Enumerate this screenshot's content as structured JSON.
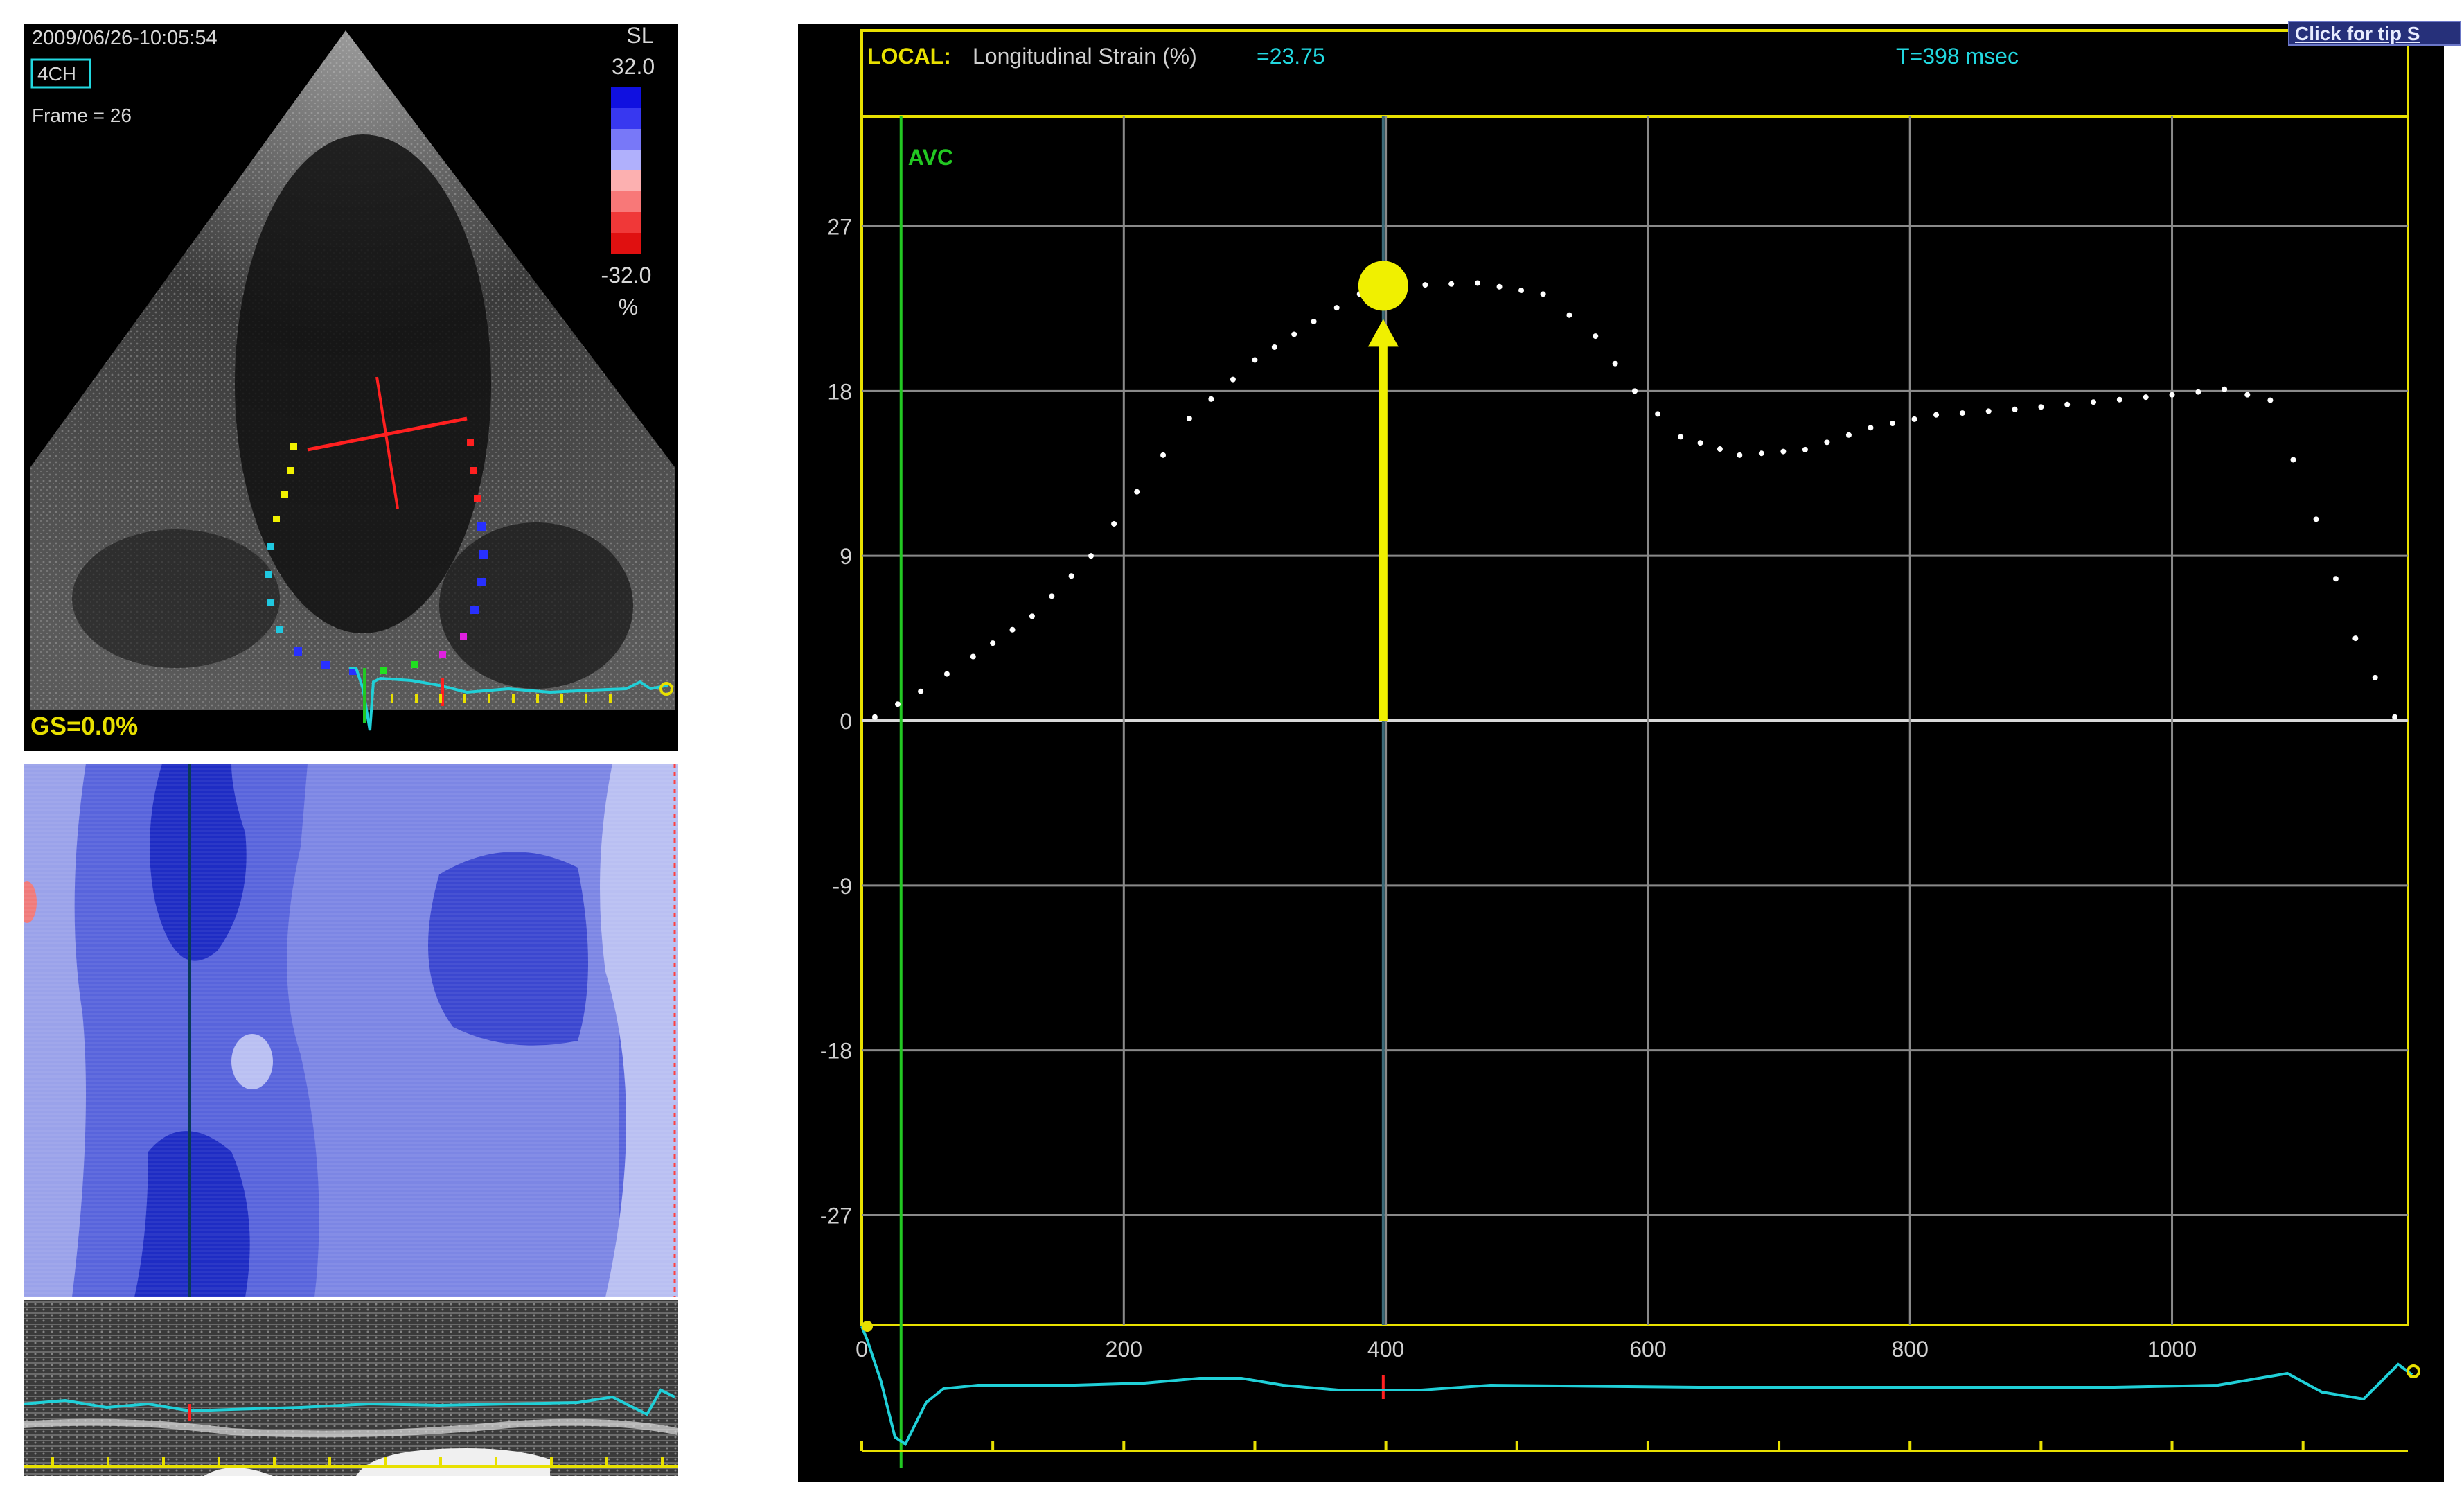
{
  "echo": {
    "datetime": "2009/06/26-10:05:54",
    "view_badge": "4CH",
    "frame": "Frame = 26",
    "colorbar": {
      "top_label": "SL",
      "max": "32.0",
      "min": "-32.0",
      "unit": "%"
    },
    "global_strain": "GS=0.0%"
  },
  "graph": {
    "header_local": "LOCAL:",
    "header_measure": "Longitudinal Strain (%)",
    "header_value": "=23.75",
    "header_time": "T=398 msec",
    "marker_label": "AVC",
    "tip_link": "Click for tip S"
  },
  "colors": {
    "frame_yellow": "#e8e000",
    "value_cyan": "#22d8e0",
    "avc_green": "#22c822",
    "ecg_cyan": "#20d0d8",
    "strain_blue": "#3a4ae0"
  },
  "chart_data": {
    "type": "scatter",
    "title": "",
    "xlabel": "",
    "ylabel": "",
    "xlim": [
      0,
      1180
    ],
    "ylim": [
      -33,
      33
    ],
    "xticks": [
      200,
      400,
      600,
      800,
      1000
    ],
    "yticks": [
      27,
      18,
      9,
      0,
      -9,
      -18,
      -27
    ],
    "avc_time": 30,
    "cursor_time": 398,
    "peak": {
      "x": 398,
      "y": 23.75
    },
    "series": [
      {
        "values": [
          {
            "x": 10,
            "y": 0.2
          },
          {
            "x": 45,
            "y": 1.6
          },
          {
            "x": 85,
            "y": 3.5
          },
          {
            "x": 130,
            "y": 5.7
          },
          {
            "x": 175,
            "y": 9.0
          },
          {
            "x": 210,
            "y": 12.5
          },
          {
            "x": 250,
            "y": 16.5
          },
          {
            "x": 300,
            "y": 19.7
          },
          {
            "x": 345,
            "y": 21.8
          },
          {
            "x": 380,
            "y": 23.3
          },
          {
            "x": 430,
            "y": 23.8
          },
          {
            "x": 470,
            "y": 23.9
          },
          {
            "x": 520,
            "y": 23.3
          },
          {
            "x": 560,
            "y": 21.0
          },
          {
            "x": 590,
            "y": 18.0
          },
          {
            "x": 625,
            "y": 15.5
          },
          {
            "x": 670,
            "y": 14.5
          },
          {
            "x": 720,
            "y": 14.8
          },
          {
            "x": 770,
            "y": 16.0
          },
          {
            "x": 820,
            "y": 16.7
          },
          {
            "x": 880,
            "y": 17.0
          },
          {
            "x": 940,
            "y": 17.4
          },
          {
            "x": 1000,
            "y": 17.8
          },
          {
            "x": 1040,
            "y": 18.1
          },
          {
            "x": 1075,
            "y": 17.5
          },
          {
            "x": 1110,
            "y": 11.0
          },
          {
            "x": 1140,
            "y": 4.5
          },
          {
            "x": 1170,
            "y": 0.2
          }
        ]
      }
    ]
  }
}
